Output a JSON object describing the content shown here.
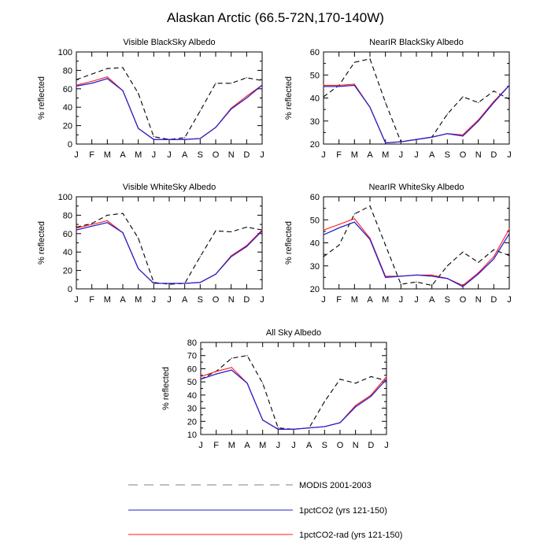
{
  "page": {
    "title": "Alaskan Arctic (66.5-72N,170-140W)"
  },
  "colors": {
    "modis": "#000000",
    "pct": "#2a1fc9",
    "rad": "#ff1a1a"
  },
  "chart_data": [
    {
      "type": "line",
      "title": "Visible BlackSky Albedo",
      "ylabel": "% reflected",
      "categories": [
        "J",
        "F",
        "M",
        "A",
        "M",
        "J",
        "J",
        "A",
        "S",
        "O",
        "N",
        "D",
        "J"
      ],
      "ylim": [
        0,
        100
      ],
      "yticks": [
        0,
        20,
        40,
        60,
        80,
        100
      ],
      "series": [
        {
          "name": "MODIS 2001-2003",
          "values": [
            70,
            76,
            82,
            83,
            55,
            8,
            5,
            7,
            36,
            66,
            66,
            72,
            69
          ]
        },
        {
          "name": "1pctCO2 (yrs 121-150)",
          "values": [
            63,
            66,
            71,
            58,
            17,
            5,
            5,
            5,
            6,
            18,
            38,
            50,
            64
          ]
        },
        {
          "name": "1pctCO2-rad (yrs 121-150)",
          "values": [
            64,
            68,
            73,
            58,
            17,
            5,
            5,
            5,
            6,
            18,
            39,
            52,
            64
          ]
        }
      ]
    },
    {
      "type": "line",
      "title": "NearIR BlackSky Albedo",
      "ylabel": "% reflected",
      "categories": [
        "J",
        "F",
        "M",
        "A",
        "M",
        "J",
        "J",
        "A",
        "S",
        "O",
        "N",
        "D",
        "J"
      ],
      "ylim": [
        20,
        60
      ],
      "yticks": [
        20,
        30,
        40,
        50,
        60
      ],
      "series": [
        {
          "name": "MODIS 2001-2003",
          "values": [
            40.5,
            45.5,
            55.5,
            57,
            38,
            21,
            22,
            23,
            33,
            40.5,
            38,
            43,
            39.5
          ]
        },
        {
          "name": "1pctCO2 (yrs 121-150)",
          "values": [
            45,
            45,
            45.5,
            36,
            20.5,
            21,
            22,
            23,
            24.5,
            23.5,
            30,
            38,
            45.5
          ]
        },
        {
          "name": "1pctCO2-rad (yrs 121-150)",
          "values": [
            45.5,
            45.5,
            46,
            36,
            20.5,
            21,
            22,
            23,
            24.5,
            24,
            30.5,
            38.5,
            45.5
          ]
        }
      ]
    },
    {
      "type": "line",
      "title": "Visible WhiteSky Albedo",
      "ylabel": "% reflected",
      "categories": [
        "J",
        "F",
        "M",
        "A",
        "M",
        "J",
        "J",
        "A",
        "S",
        "O",
        "N",
        "D",
        "J"
      ],
      "ylim": [
        0,
        100
      ],
      "yticks": [
        0,
        20,
        40,
        60,
        80,
        100
      ],
      "series": [
        {
          "name": "MODIS 2001-2003",
          "values": [
            67,
            71,
            80,
            82,
            55,
            7,
            5,
            6,
            35,
            63,
            62,
            67,
            64
          ]
        },
        {
          "name": "1pctCO2 (yrs 121-150)",
          "values": [
            64,
            68,
            72,
            61,
            22,
            6,
            6,
            6,
            7,
            16,
            35,
            46,
            63
          ]
        },
        {
          "name": "1pctCO2-rad (yrs 121-150)",
          "values": [
            66,
            70,
            74,
            61,
            22,
            6,
            6,
            6,
            7,
            16,
            36,
            47,
            64
          ]
        }
      ]
    },
    {
      "type": "line",
      "title": "NearIR WhiteSky Albedo",
      "ylabel": "% reflected",
      "categories": [
        "J",
        "F",
        "M",
        "A",
        "M",
        "J",
        "J",
        "A",
        "S",
        "O",
        "N",
        "D",
        "J"
      ],
      "ylim": [
        20,
        60
      ],
      "yticks": [
        20,
        30,
        40,
        50,
        60
      ],
      "series": [
        {
          "name": "MODIS 2001-2003",
          "values": [
            34,
            39,
            52.5,
            56,
            39,
            22,
            23,
            21.5,
            30,
            36,
            31.5,
            37,
            34.5
          ]
        },
        {
          "name": "1pctCO2 (yrs 121-150)",
          "values": [
            43.5,
            46.5,
            49,
            41.5,
            25,
            25.5,
            26,
            25.5,
            24.5,
            21,
            26.5,
            33,
            44
          ]
        },
        {
          "name": "1pctCO2-rad (yrs 121-150)",
          "values": [
            45.5,
            48,
            50.5,
            42,
            25.5,
            25.5,
            26,
            26,
            24.5,
            21.5,
            27,
            34,
            46
          ]
        }
      ]
    },
    {
      "type": "line",
      "title": "All Sky Albedo",
      "ylabel": "% reflected",
      "categories": [
        "J",
        "F",
        "M",
        "A",
        "M",
        "J",
        "J",
        "A",
        "S",
        "O",
        "N",
        "D",
        "J"
      ],
      "ylim": [
        10,
        80
      ],
      "yticks": [
        10,
        20,
        30,
        40,
        50,
        60,
        70,
        80
      ],
      "series": [
        {
          "name": "MODIS 2001-2003",
          "values": [
            52,
            58,
            68,
            70,
            49,
            15,
            14,
            15,
            35,
            52,
            49,
            54,
            51
          ]
        },
        {
          "name": "1pctCO2 (yrs 121-150)",
          "values": [
            52,
            56,
            59,
            49,
            21,
            14,
            14,
            15,
            16,
            19,
            31,
            39,
            52
          ]
        },
        {
          "name": "1pctCO2-rad (yrs 121-150)",
          "values": [
            54,
            58,
            61,
            49,
            21,
            14,
            14,
            15,
            16,
            19,
            32,
            40,
            54
          ]
        }
      ]
    }
  ],
  "legend": {
    "placement": "bottom",
    "items": [
      {
        "label": "MODIS 2001-2003",
        "style": "dashed"
      },
      {
        "label": "1pctCO2 (yrs 121-150)",
        "style": "solid-blue"
      },
      {
        "label": "1pctCO2-rad (yrs 121-150)",
        "style": "solid-red"
      }
    ]
  }
}
